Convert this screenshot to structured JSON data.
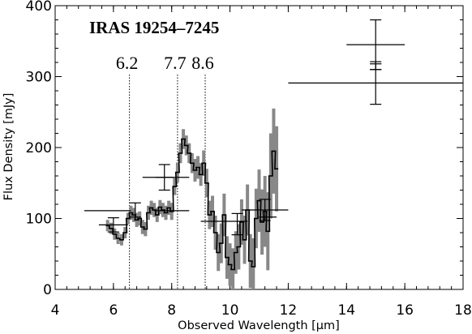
{
  "chart_data": {
    "type": "line",
    "title": "IRAS 19254–7245",
    "xlabel": "Observed Wavelength [μm]",
    "ylabel": "Flux Density [mJy]",
    "xlim": [
      4,
      18
    ],
    "ylim": [
      0,
      400
    ],
    "x_ticks": [
      4,
      6,
      8,
      10,
      12,
      14,
      16,
      18
    ],
    "y_ticks": [
      0,
      100,
      200,
      300,
      400
    ],
    "x_tick_labels": [
      "4",
      "6",
      "8",
      "10",
      "12",
      "14",
      "16",
      "18"
    ],
    "y_tick_labels": [
      "0",
      "100",
      "200",
      "300",
      "400"
    ],
    "feature_lines": [
      {
        "label": "6.2",
        "x": 6.55
      },
      {
        "label": "7.7",
        "x": 8.2
      },
      {
        "label": "8.6",
        "x": 9.15
      }
    ],
    "spectrum": {
      "x": [
        5.8,
        5.92,
        6.04,
        6.16,
        6.28,
        6.4,
        6.5,
        6.6,
        6.7,
        6.8,
        6.9,
        7.0,
        7.1,
        7.2,
        7.3,
        7.4,
        7.5,
        7.6,
        7.7,
        7.8,
        7.9,
        8.0,
        8.1,
        8.2,
        8.3,
        8.4,
        8.5,
        8.6,
        8.7,
        8.8,
        8.9,
        9.0,
        9.1,
        9.2,
        9.3,
        9.4,
        9.5,
        9.6,
        9.7,
        9.8,
        9.9,
        10.0,
        10.1,
        10.2,
        10.3,
        10.4,
        10.5,
        10.6,
        10.7,
        10.8,
        10.9,
        11.0,
        11.1,
        11.2,
        11.3,
        11.4,
        11.5,
        11.6
      ],
      "y": [
        90,
        86,
        78,
        72,
        70,
        80,
        100,
        108,
        105,
        98,
        100,
        88,
        85,
        108,
        115,
        112,
        105,
        116,
        112,
        108,
        115,
        110,
        145,
        165,
        192,
        212,
        203,
        192,
        178,
        168,
        172,
        162,
        178,
        150,
        105,
        110,
        80,
        52,
        65,
        105,
        45,
        35,
        28,
        52,
        60,
        95,
        70,
        112,
        40,
        32,
        100,
        125,
        95,
        110,
        82,
        160,
        195,
        170
      ],
      "error": [
        8,
        8,
        8,
        8,
        8,
        8,
        8,
        10,
        10,
        10,
        10,
        10,
        10,
        10,
        10,
        10,
        10,
        10,
        10,
        10,
        10,
        12,
        12,
        14,
        14,
        14,
        14,
        14,
        14,
        16,
        16,
        16,
        18,
        20,
        20,
        22,
        24,
        26,
        28,
        30,
        30,
        30,
        30,
        30,
        32,
        32,
        34,
        36,
        38,
        40,
        42,
        44,
        46,
        50,
        55,
        60,
        60,
        60
      ]
    },
    "photometry": [
      {
        "x": 6.0,
        "y": 91,
        "x_err": 0.5,
        "y_err": 10
      },
      {
        "x": 5.8,
        "y": 111,
        "x_err": 0.8,
        "y_err": 0
      },
      {
        "x": 6.75,
        "y": 112,
        "x_err": 0.0,
        "y_err": 10
      },
      {
        "x": 8.0,
        "y": 111,
        "x_err": 0.6,
        "y_err": 0
      },
      {
        "x": 7.8,
        "y": 158,
        "x_err": 0.8,
        "y_err": 0
      },
      {
        "x": 7.75,
        "y": 158,
        "x_err": 0.3,
        "y_err": 18
      },
      {
        "x": 9.8,
        "y": 96,
        "x_err": 0.8,
        "y_err": 0
      },
      {
        "x": 10.25,
        "y": 92,
        "x_err": 0.0,
        "y_err": 15
      },
      {
        "x": 11.2,
        "y": 112,
        "x_err": 0.8,
        "y_err": 15
      },
      {
        "x": 11.3,
        "y": 102,
        "x_err": 0.3,
        "y_err": 0
      },
      {
        "x": 15.0,
        "y": 345,
        "x_err": 1.0,
        "y_err": 35
      },
      {
        "x": 15.0,
        "y": 291,
        "x_err": 3.0,
        "y_err": 30
      },
      {
        "x": 15.0,
        "y": 318,
        "x_err": 0.2,
        "y_err": 0
      },
      {
        "x": 15.0,
        "y": 310,
        "x_err": 0.2,
        "y_err": 0
      }
    ],
    "grid": false,
    "legend": "none"
  }
}
